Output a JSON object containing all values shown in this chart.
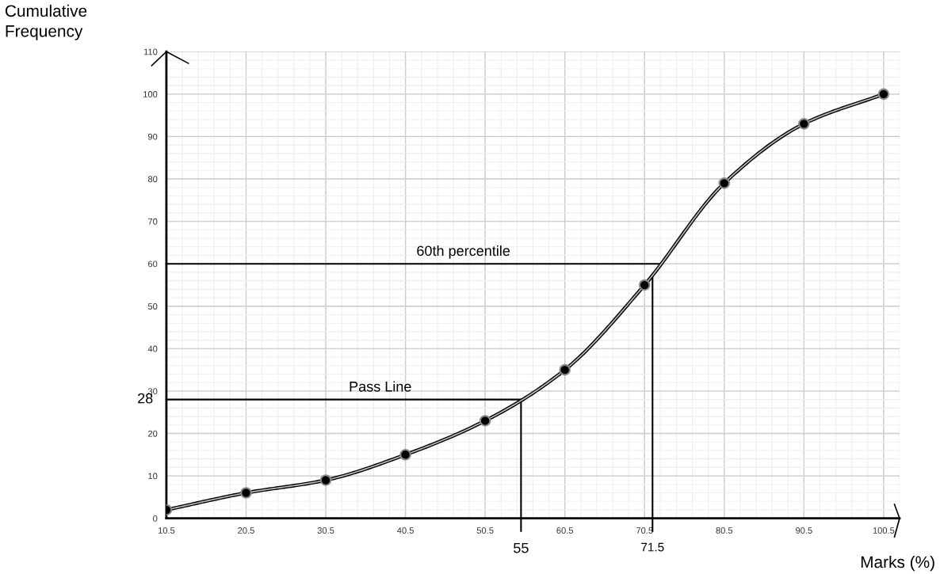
{
  "chart_data": {
    "type": "line",
    "xlabel": "Marks (%)",
    "ylabel": "Cumulative\nFrequency",
    "x": [
      10.5,
      20.5,
      30.5,
      40.5,
      50.5,
      60.5,
      70.5,
      80.5,
      90.5,
      100.5
    ],
    "series": [
      {
        "color": "#000000",
        "values": [
          2,
          6,
          9,
          15,
          23,
          35,
          55,
          79,
          93,
          100
        ]
      }
    ],
    "marker": "circle",
    "line_style": "solid",
    "grid": true,
    "xlim": [
      10.5,
      102.5
    ],
    "ylim": [
      0,
      110
    ],
    "xticks": [
      10.5,
      20.5,
      30.5,
      40.5,
      50.5,
      60.5,
      70.5,
      80.5,
      90.5,
      100.5
    ],
    "yticks": [
      0,
      10,
      20,
      30,
      40,
      50,
      60,
      70,
      80,
      90,
      100,
      110
    ],
    "ref_lines": [
      {
        "axis": "y",
        "value": 60,
        "label": "60th percentile",
        "color": "#000000"
      },
      {
        "axis": "y",
        "value": 28,
        "label": "Pass Line",
        "color": "#000000"
      },
      {
        "axis": "x",
        "value": 55,
        "label": "55",
        "color": "#000000"
      },
      {
        "axis": "x",
        "value": 71.5,
        "label": "71.5",
        "color": "#000000"
      }
    ],
    "annotations": [
      {
        "text": "28",
        "x": 10.5,
        "y": 28
      }
    ]
  }
}
